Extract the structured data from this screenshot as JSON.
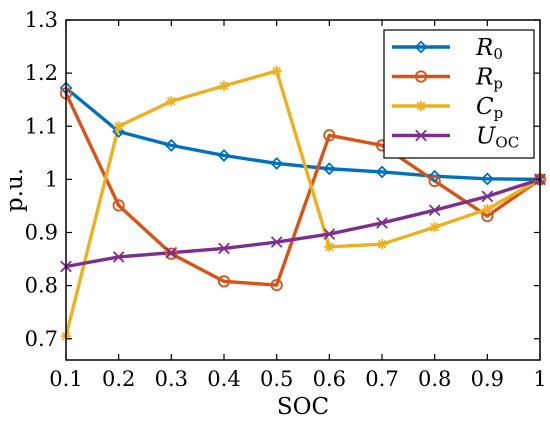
{
  "chart_data": {
    "type": "line",
    "xlabel": "SOC",
    "ylabel": "p.u.",
    "xlim": [
      0.1,
      1.0
    ],
    "ylim": [
      0.66,
      1.3
    ],
    "x_ticks": [
      "0.1",
      "0.2",
      "0.3",
      "0.4",
      "0.5",
      "0.6",
      "0.7",
      "0.8",
      "0.9",
      "1"
    ],
    "y_ticks": [
      "0.7",
      "0.8",
      "0.9",
      "1",
      "1.1",
      "1.2",
      "1.3"
    ],
    "legend_position": "top-right",
    "x": [
      0.1,
      0.2,
      0.3,
      0.4,
      0.5,
      0.6,
      0.7,
      0.8,
      0.9,
      1.0
    ],
    "series": [
      {
        "name_main": "R",
        "name_sub": "0",
        "color": "#0072BD",
        "marker": "diamond",
        "values": [
          1.172,
          1.09,
          1.064,
          1.045,
          1.03,
          1.02,
          1.014,
          1.006,
          1.001,
          1.0
        ]
      },
      {
        "name_main": "R",
        "name_sub": "p",
        "color": "#D95319",
        "marker": "circle",
        "values": [
          1.162,
          0.951,
          0.86,
          0.808,
          0.801,
          1.083,
          1.064,
          0.997,
          0.931,
          1.0
        ]
      },
      {
        "name_main": "C",
        "name_sub": "p",
        "color": "#EDB120",
        "marker": "asterisk",
        "values": [
          0.705,
          1.1,
          1.147,
          1.176,
          1.204,
          0.873,
          0.878,
          0.91,
          0.944,
          1.0
        ]
      },
      {
        "name_main": "U",
        "name_sub": "OC",
        "color": "#7E2F8E",
        "marker": "x",
        "values": [
          0.836,
          0.854,
          0.862,
          0.87,
          0.882,
          0.897,
          0.918,
          0.942,
          0.968,
          1.0
        ]
      }
    ]
  }
}
